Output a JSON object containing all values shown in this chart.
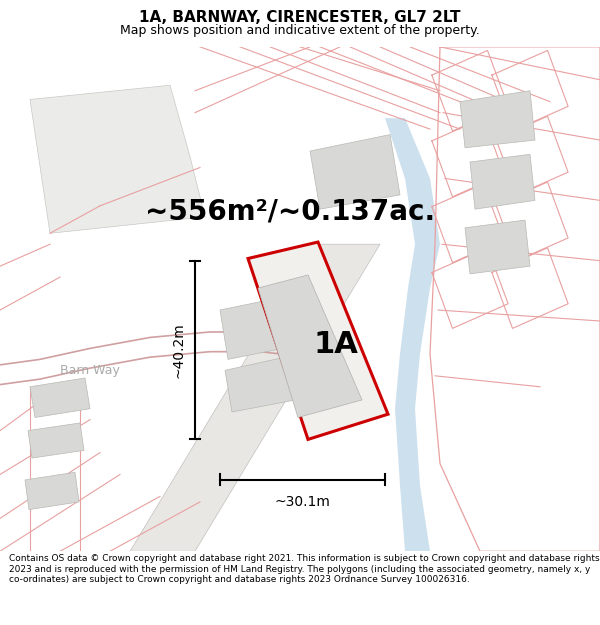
{
  "title": "1A, BARNWAY, CIRENCESTER, GL7 2LT",
  "subtitle": "Map shows position and indicative extent of the property.",
  "area_text": "~556m²/~0.137ac.",
  "label_1a": "1A",
  "width_label": "~30.1m",
  "height_label": "~40.2m",
  "road_label": "Barn Way",
  "left_road_label": "Barn Way",
  "footer": "Contains OS data © Crown copyright and database right 2021. This information is subject to Crown copyright and database rights 2023 and is reproduced with the permission of HM Land Registry. The polygons (including the associated geometry, namely x, y co-ordinates) are subject to Crown copyright and database rights 2023 Ordnance Survey 100026316.",
  "map_bg": "#ffffff",
  "red_color": "#cc0000",
  "pink_color": "#e8a0a0",
  "blue_color": "#b8d4e8",
  "gray_color": "#d8d8d6",
  "gray_light": "#ebebea",
  "road_gray": "#d0cfcc",
  "title_fontsize": 11,
  "subtitle_fontsize": 9,
  "area_fontsize": 20,
  "label_fontsize": 22,
  "dim_fontsize": 10,
  "road_fontsize": 8,
  "footer_fontsize": 6.5
}
